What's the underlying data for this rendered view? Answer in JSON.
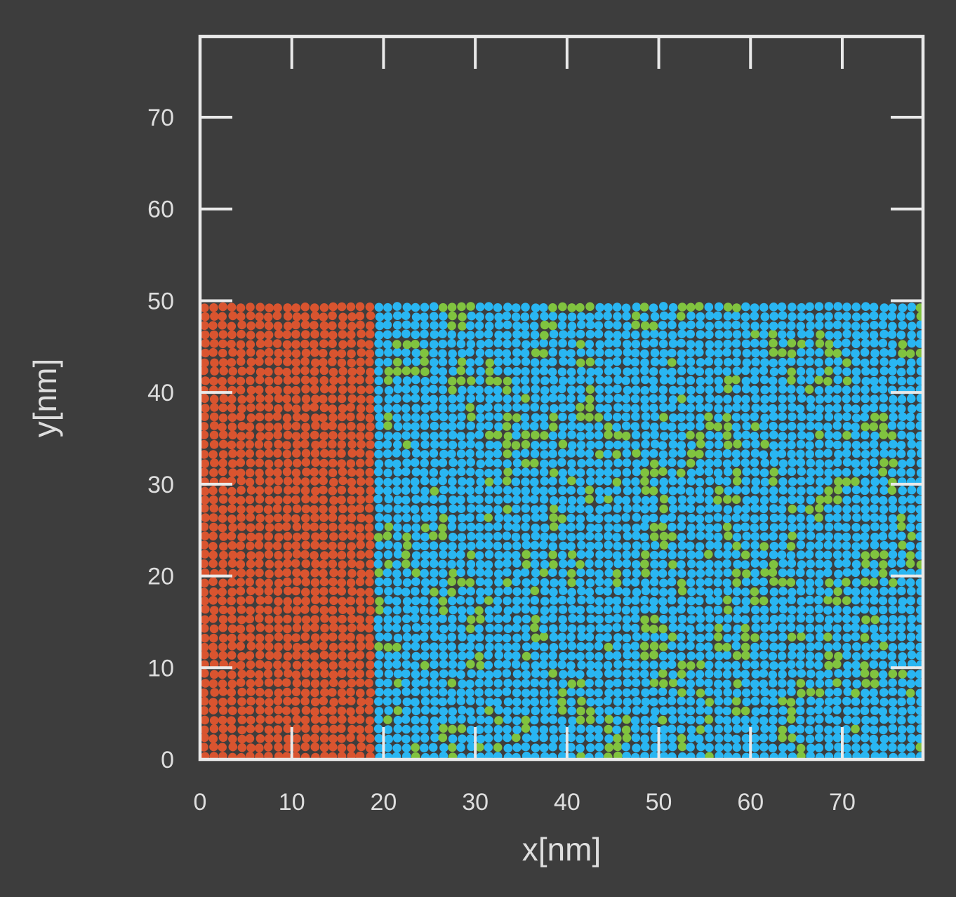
{
  "figure": {
    "background": "#3d3d3d",
    "axis_color": "#e9e9e9",
    "text_color": "#dedede"
  },
  "chart_data": {
    "type": "scatter",
    "title": "",
    "xlabel": "x[nm]",
    "ylabel": "y[nm]",
    "xlim": [
      0,
      78.8
    ],
    "ylim": [
      0,
      78.8
    ],
    "x_ticks": [
      0,
      10,
      20,
      30,
      40,
      50,
      60,
      70
    ],
    "y_ticks": [
      0,
      10,
      20,
      30,
      40,
      50,
      60,
      70
    ],
    "tick_sides": [
      "bottom",
      "left",
      "top",
      "right"
    ],
    "grid": false,
    "legend": "none",
    "lattice": {
      "description": "Atomistic simulation snapshot: square lattice slab of atoms with 1 nm spacing filling y = 0 to 50 nm across the full x range; pure red phase for x < ~19 nm, blue phase with randomly mixed green solute atoms for x > ~19 nm; empty background above y = 50 nm",
      "spacing_nm": 1.0,
      "columns": 79,
      "rows": 50,
      "first_x_nm": 0.5,
      "first_y_nm": 0.3,
      "dot_radius_nm": 0.48,
      "jitter_nm": 0.09,
      "random_seed": 20,
      "species": [
        {
          "name": "red-atoms",
          "color": "#d9542f",
          "region_x_nm": [
            0,
            19.2
          ],
          "approx_count": 950
        },
        {
          "name": "blue-atoms",
          "color": "#29b6f2",
          "region_x_nm": [
            19.2,
            78.8
          ],
          "approx_count": 2500
        },
        {
          "name": "green-atoms",
          "color": "#80c33f",
          "region_x_nm": [
            19.2,
            78.8
          ],
          "mix_fraction": 0.167,
          "base_prob": 0.085,
          "neighbor_prob": 0.33,
          "approx_count": 500
        }
      ]
    }
  }
}
